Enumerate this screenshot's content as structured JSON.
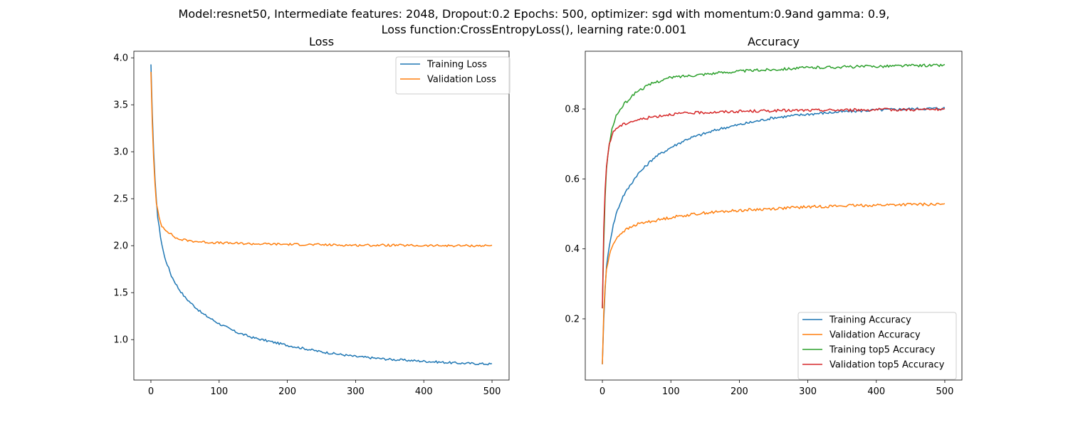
{
  "figure": {
    "suptitle_line1": "Model:resnet50, Intermediate features: 2048, Dropout:0.2 Epochs: 500, optimizer: sgd with momentum:0.9and gamma: 0.9,",
    "suptitle_line2": "Loss function:CrossEntropyLoss(), learning rate:0.001"
  },
  "chart_data": [
    {
      "type": "line",
      "title": "Loss",
      "xlabel": "",
      "ylabel": "",
      "xlim": [
        -25,
        525
      ],
      "ylim": [
        0.57,
        4.07
      ],
      "xticks": [
        0,
        100,
        200,
        300,
        400,
        500
      ],
      "yticks": [
        1.0,
        1.5,
        2.0,
        2.5,
        3.0,
        3.5,
        4.0
      ],
      "ytick_labels": [
        "1.0",
        "1.5",
        "2.0",
        "2.5",
        "3.0",
        "3.5",
        "4.0"
      ],
      "legend_loc": "upper right",
      "grid": false,
      "series": [
        {
          "name": "Training Loss",
          "color": "#1f77b4",
          "x": [
            0,
            2,
            5,
            10,
            15,
            20,
            30,
            40,
            50,
            60,
            75,
            100,
            125,
            150,
            175,
            200,
            250,
            300,
            350,
            400,
            450,
            500
          ],
          "y": [
            3.93,
            3.4,
            2.8,
            2.3,
            2.05,
            1.88,
            1.68,
            1.55,
            1.45,
            1.38,
            1.28,
            1.17,
            1.08,
            1.02,
            0.98,
            0.94,
            0.87,
            0.82,
            0.79,
            0.77,
            0.75,
            0.74
          ]
        },
        {
          "name": "Validation Loss",
          "color": "#ff7f0e",
          "x": [
            0,
            2,
            5,
            8,
            12,
            15,
            20,
            25,
            30,
            35,
            40,
            50,
            60,
            75,
            100,
            150,
            200,
            250,
            300,
            350,
            400,
            450,
            500
          ],
          "y": [
            3.85,
            3.3,
            2.75,
            2.45,
            2.3,
            2.22,
            2.18,
            2.15,
            2.12,
            2.09,
            2.07,
            2.06,
            2.05,
            2.04,
            2.03,
            2.02,
            2.015,
            2.01,
            2.005,
            2.005,
            2.0,
            2.0,
            2.0
          ]
        }
      ]
    },
    {
      "type": "line",
      "title": "Accuracy",
      "xlabel": "",
      "ylabel": "",
      "xlim": [
        -25,
        525
      ],
      "ylim": [
        0.025,
        0.965
      ],
      "xticks": [
        0,
        100,
        200,
        300,
        400,
        500
      ],
      "yticks": [
        0.2,
        0.4,
        0.6,
        0.8
      ],
      "ytick_labels": [
        "0.2",
        "0.4",
        "0.6",
        "0.8"
      ],
      "legend_loc": "lower right",
      "grid": false,
      "series": [
        {
          "name": "Training Accuracy",
          "color": "#1f77b4",
          "x": [
            0,
            2,
            5,
            10,
            15,
            20,
            30,
            40,
            50,
            60,
            75,
            100,
            125,
            150,
            175,
            200,
            250,
            300,
            350,
            400,
            450,
            500
          ],
          "y": [
            0.07,
            0.2,
            0.33,
            0.41,
            0.46,
            0.5,
            0.55,
            0.58,
            0.61,
            0.63,
            0.66,
            0.69,
            0.715,
            0.73,
            0.745,
            0.755,
            0.775,
            0.785,
            0.792,
            0.797,
            0.8,
            0.802
          ]
        },
        {
          "name": "Validation Accuracy",
          "color": "#ff7f0e",
          "x": [
            0,
            2,
            5,
            10,
            15,
            20,
            30,
            40,
            50,
            60,
            75,
            100,
            125,
            150,
            200,
            250,
            300,
            350,
            400,
            450,
            500
          ],
          "y": [
            0.07,
            0.22,
            0.33,
            0.38,
            0.41,
            0.43,
            0.45,
            0.46,
            0.47,
            0.475,
            0.48,
            0.49,
            0.497,
            0.503,
            0.51,
            0.515,
            0.52,
            0.523,
            0.525,
            0.527,
            0.527
          ]
        },
        {
          "name": "Training top5 Accuracy",
          "color": "#2ca02c",
          "x": [
            0,
            2,
            5,
            10,
            15,
            20,
            30,
            40,
            50,
            60,
            75,
            100,
            125,
            150,
            200,
            250,
            300,
            350,
            400,
            450,
            500
          ],
          "y": [
            0.23,
            0.42,
            0.61,
            0.7,
            0.75,
            0.78,
            0.81,
            0.83,
            0.85,
            0.86,
            0.875,
            0.89,
            0.895,
            0.9,
            0.908,
            0.913,
            0.918,
            0.92,
            0.922,
            0.924,
            0.925
          ]
        },
        {
          "name": "Validation top5 Accuracy",
          "color": "#d62728",
          "x": [
            0,
            2,
            5,
            10,
            15,
            20,
            30,
            40,
            50,
            60,
            75,
            100,
            125,
            150,
            200,
            250,
            300,
            350,
            400,
            450,
            500
          ],
          "y": [
            0.23,
            0.46,
            0.62,
            0.7,
            0.73,
            0.745,
            0.755,
            0.763,
            0.768,
            0.772,
            0.778,
            0.785,
            0.788,
            0.79,
            0.793,
            0.795,
            0.796,
            0.797,
            0.798,
            0.798,
            0.799
          ]
        }
      ]
    }
  ]
}
